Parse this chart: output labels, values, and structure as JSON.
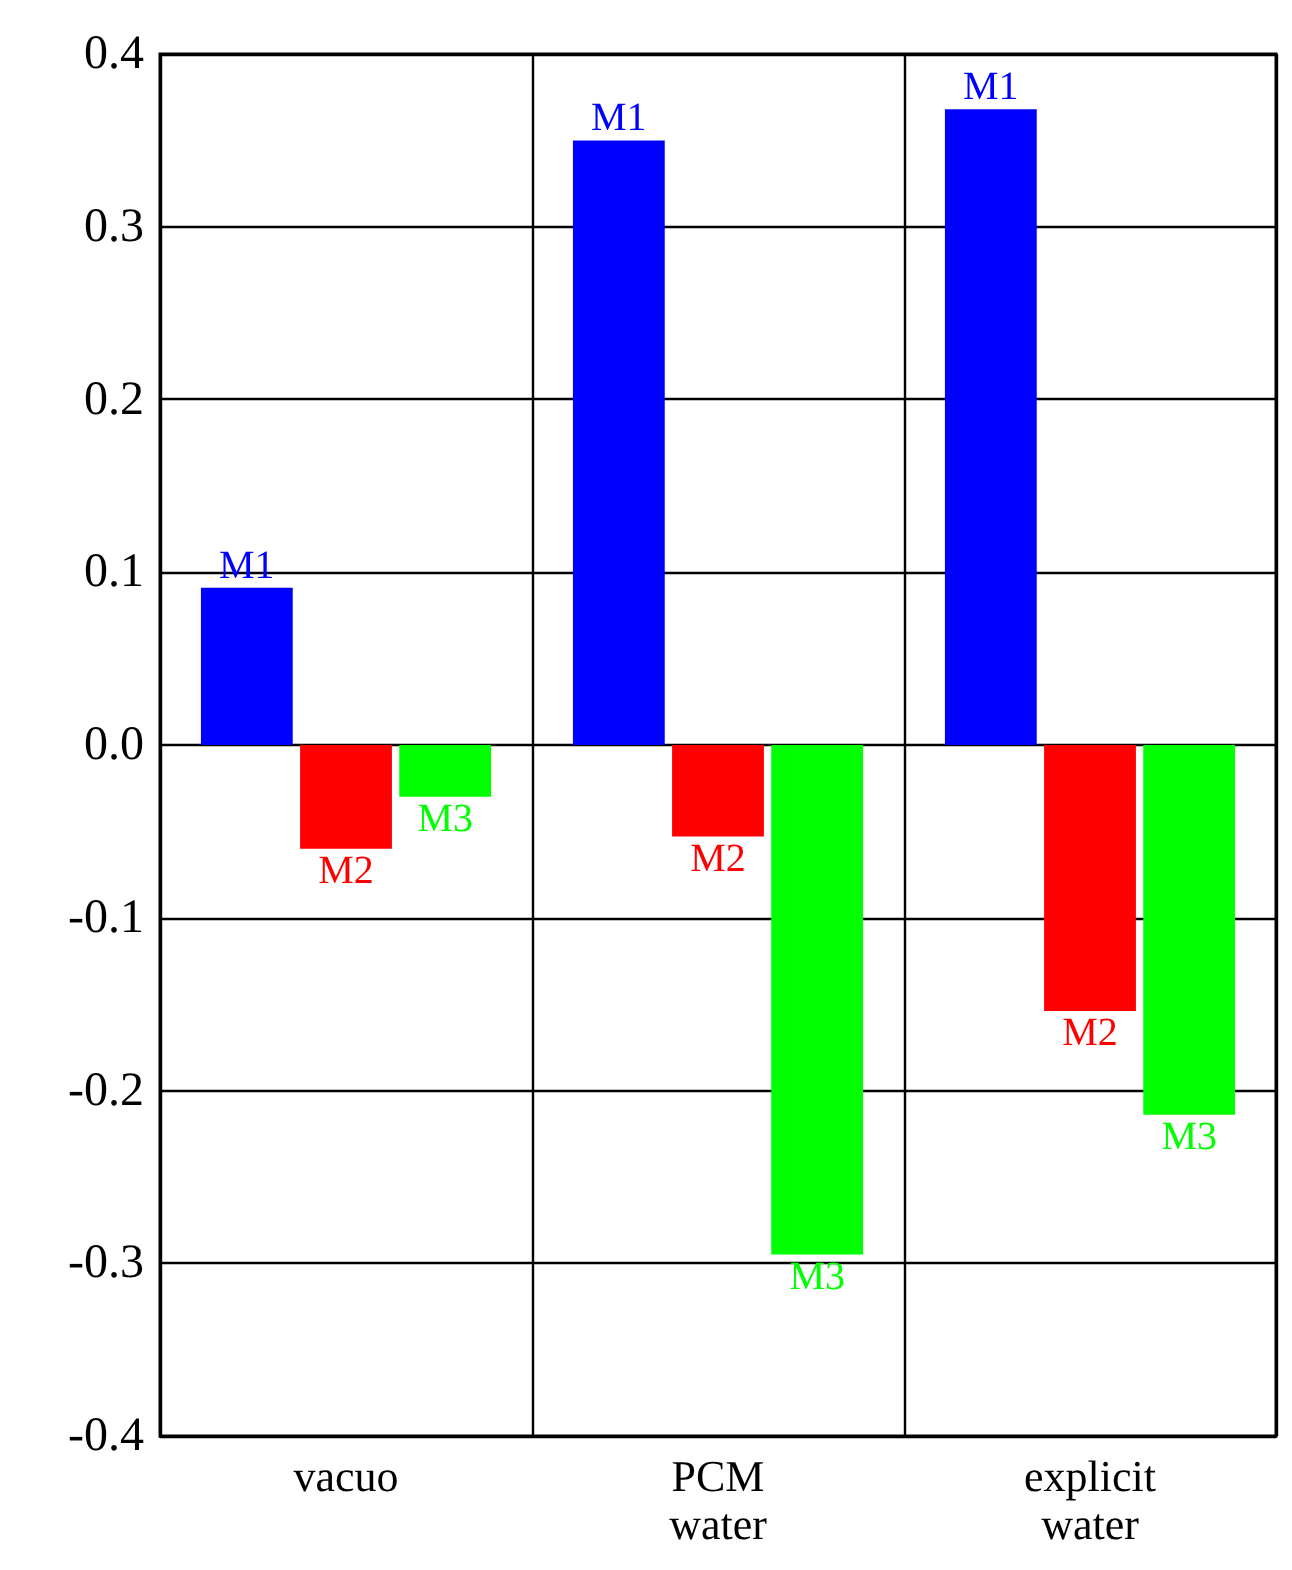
{
  "chart_data": {
    "type": "bar",
    "categories": [
      "vacuo",
      "PCM\nwater",
      "explicit\nwater"
    ],
    "series": [
      {
        "name": "M1",
        "color": "#0000ff",
        "values": [
          0.091,
          0.35,
          0.368
        ]
      },
      {
        "name": "M2",
        "color": "#ff0000",
        "values": [
          -0.06,
          -0.053,
          -0.154
        ]
      },
      {
        "name": "M3",
        "color": "#00ff00",
        "values": [
          -0.03,
          -0.295,
          -0.214
        ]
      }
    ],
    "ylim": [
      -0.4,
      0.4
    ],
    "yticks": [
      {
        "value": -0.4,
        "label": "-0.4"
      },
      {
        "value": -0.3,
        "label": "-0.3"
      },
      {
        "value": -0.2,
        "label": "-0.2"
      },
      {
        "value": -0.1,
        "label": "-0.1"
      },
      {
        "value": 0,
        "label": "0.0"
      },
      {
        "value": 0.1,
        "label": "0.1"
      },
      {
        "value": 0.2,
        "label": "0.2"
      },
      {
        "value": 0.3,
        "label": "0.3"
      },
      {
        "value": 0.4,
        "label": "0.4"
      }
    ],
    "grid": true,
    "legend": false
  }
}
